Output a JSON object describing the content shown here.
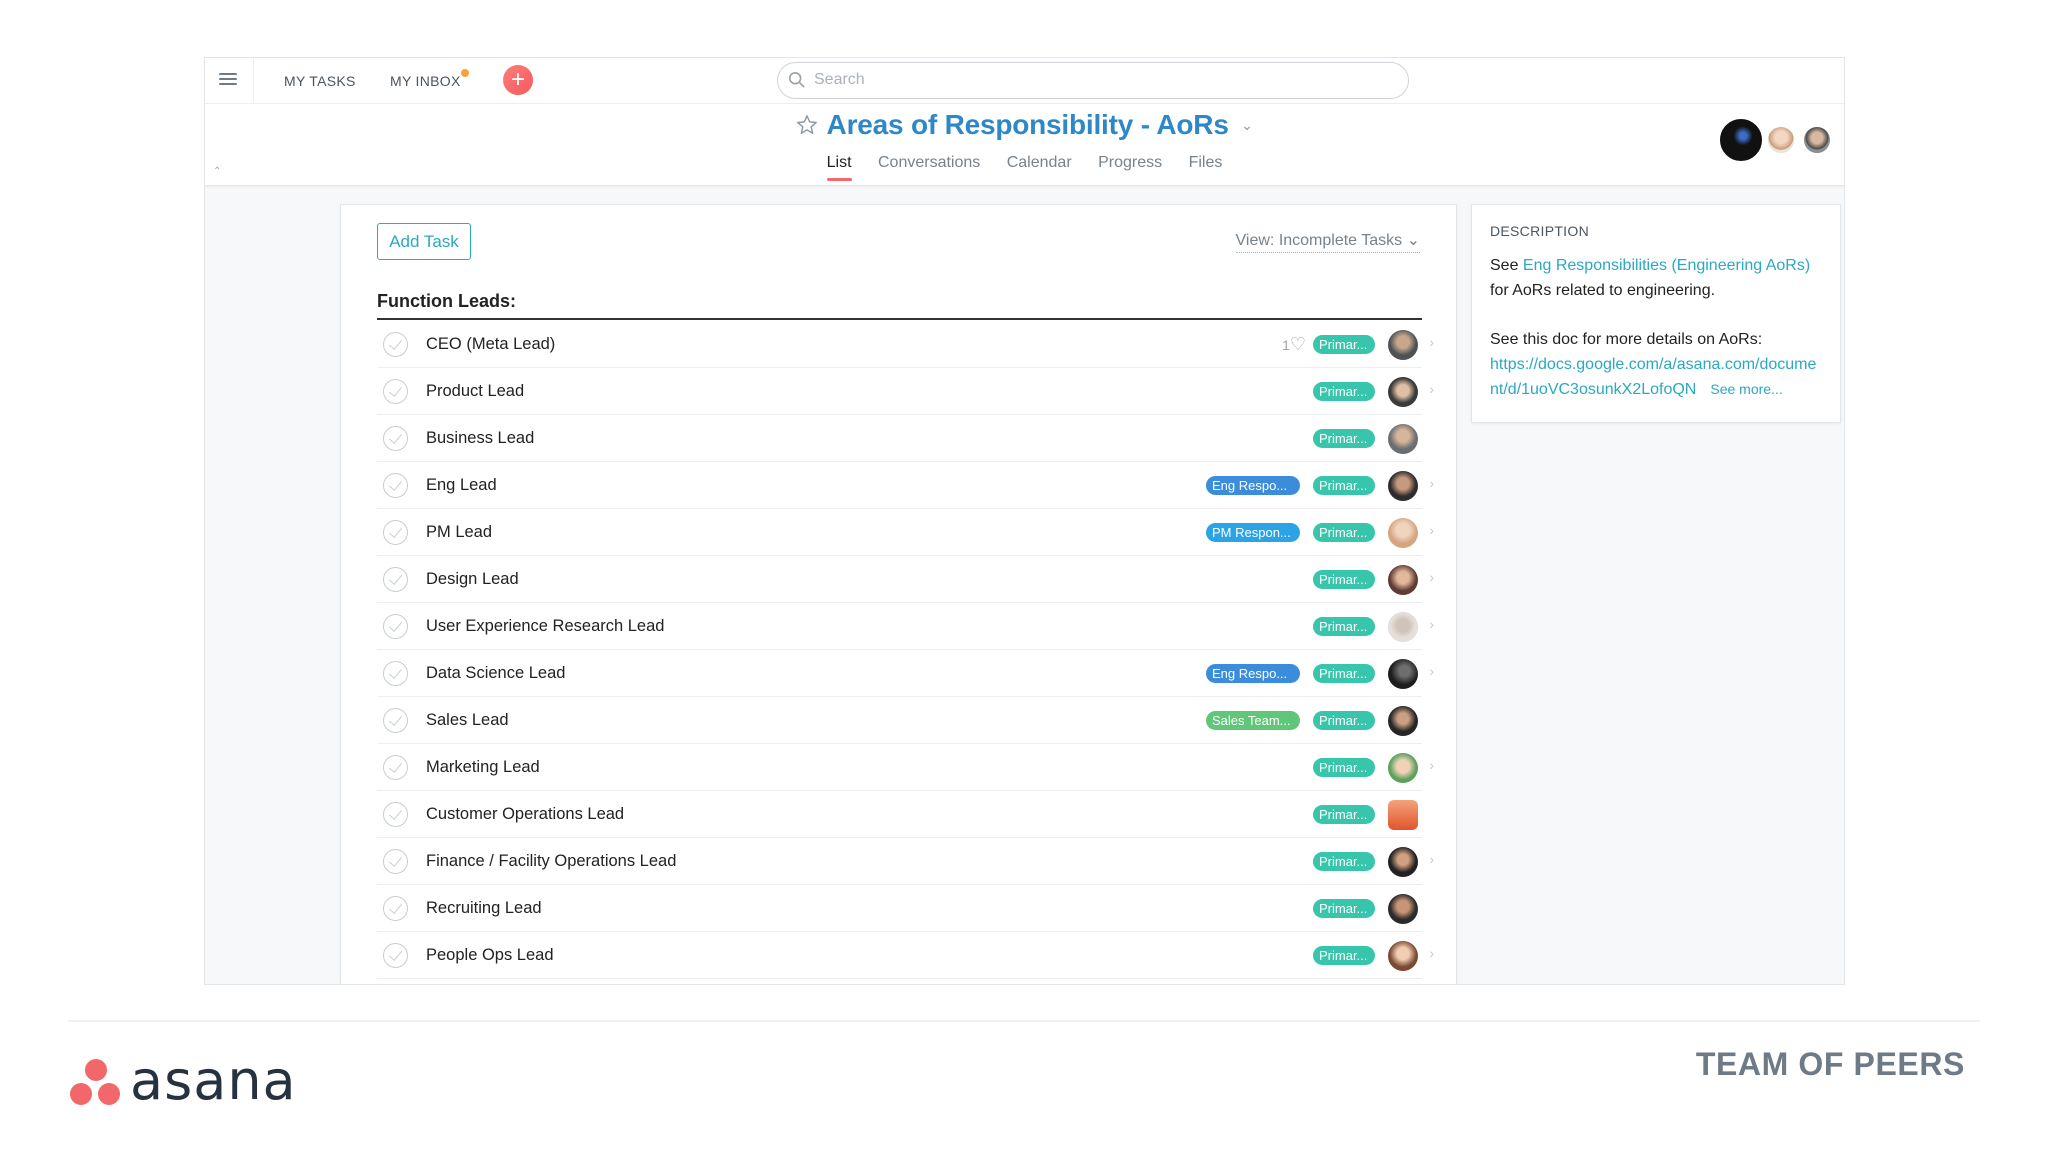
{
  "topbar": {
    "my_tasks": "MY TASKS",
    "my_inbox": "MY INBOX",
    "search_placeholder": "Search"
  },
  "project": {
    "title": "Areas of Responsibility - AoRs",
    "tabs": [
      {
        "label": "List",
        "active": true
      },
      {
        "label": "Conversations",
        "active": false
      },
      {
        "label": "Calendar",
        "active": false
      },
      {
        "label": "Progress",
        "active": false
      },
      {
        "label": "Files",
        "active": false
      }
    ]
  },
  "list": {
    "add_task_label": "Add Task",
    "view_label": "View: Incomplete Tasks",
    "section_title": "Function Leads:",
    "tasks": [
      {
        "name": "CEO (Meta Lead)",
        "likes": "1",
        "tag": "",
        "primary": "Primar..."
      },
      {
        "name": "Product Lead",
        "tag": "",
        "primary": "Primar..."
      },
      {
        "name": "Business Lead",
        "tag": "",
        "primary": "Primar..."
      },
      {
        "name": "Eng Lead",
        "tag": "Eng Respo...",
        "tag_color": "#3b8cdb",
        "primary": "Primar..."
      },
      {
        "name": "PM Lead",
        "tag": "PM Respon...",
        "tag_color": "#2ba3e5",
        "primary": "Primar..."
      },
      {
        "name": "Design Lead",
        "tag": "",
        "primary": "Primar..."
      },
      {
        "name": "User Experience Research Lead",
        "tag": "",
        "primary": "Primar..."
      },
      {
        "name": "Data Science Lead",
        "tag": "Eng Respo...",
        "tag_color": "#3b8cdb",
        "primary": "Primar..."
      },
      {
        "name": "Sales Lead",
        "tag": "Sales Team...",
        "tag_color": "#5fc67a",
        "primary": "Primar..."
      },
      {
        "name": "Marketing Lead",
        "tag": "",
        "primary": "Primar..."
      },
      {
        "name": "Customer Operations Lead",
        "tag": "",
        "primary": "Primar..."
      },
      {
        "name": "Finance / Facility Operations Lead",
        "tag": "",
        "primary": "Primar..."
      },
      {
        "name": "Recruiting Lead",
        "tag": "",
        "primary": "Primar..."
      },
      {
        "name": "People Ops Lead",
        "tag": "",
        "primary": "Primar..."
      }
    ]
  },
  "description": {
    "label": "DESCRIPTION",
    "p1_see": "See ",
    "p1_link": "Eng Responsibilities (Engineering AoRs)",
    "p1_rest": " for AoRs related to engineering.",
    "p2_text": "See this doc for more details on AoRs:",
    "p2_link": "https://docs.google.com/a/asana.com/document/d/1uoVC3osunkX2LofoQN",
    "see_more": "See more..."
  },
  "footer": {
    "logo_text": "asana",
    "tagline": "TEAM OF PEERS"
  },
  "colors": {
    "accent_blue": "#2e88c7",
    "teal": "#2ba8c3",
    "primary_tag": "#37c5ab",
    "brand_coral": "#f2676a"
  }
}
